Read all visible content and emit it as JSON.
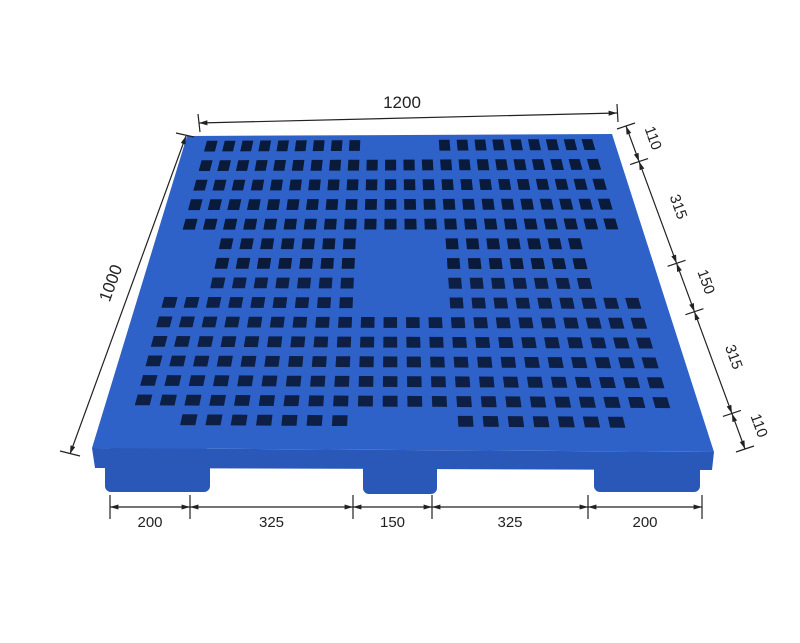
{
  "colors": {
    "pallet": "#2f62c8",
    "pallet_dark": "#1f4aa0",
    "line": "#222222"
  },
  "dimensions": {
    "length": "1200",
    "width": "1000",
    "side": [
      "110",
      "315",
      "150",
      "315",
      "110"
    ],
    "front": [
      "200",
      "325",
      "150",
      "325",
      "200"
    ]
  }
}
